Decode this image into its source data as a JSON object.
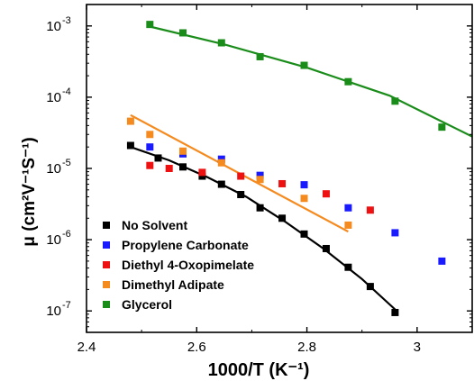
{
  "chart_data": {
    "type": "scatter",
    "xlabel": "1000/T (K⁻¹)",
    "ylabel": "μ (cm²V⁻¹S⁻¹)",
    "xlim": [
      2.4,
      3.1
    ],
    "ylim": [
      5e-08,
      0.002
    ],
    "yscale": "log",
    "grid": false,
    "legend_position": "lower-left",
    "x_ticks": [
      {
        "value": 2.4,
        "label": "2.4"
      },
      {
        "value": 2.6,
        "label": "2.6"
      },
      {
        "value": 2.8,
        "label": "2.8"
      },
      {
        "value": 3.0,
        "label": "3"
      }
    ],
    "y_ticks": [
      {
        "value": 1e-07,
        "mantissa": "10",
        "exponent": "-7"
      },
      {
        "value": 1e-06,
        "mantissa": "10",
        "exponent": "-6"
      },
      {
        "value": 1e-05,
        "mantissa": "10",
        "exponent": "-5"
      },
      {
        "value": 0.0001,
        "mantissa": "10",
        "exponent": "-4"
      },
      {
        "value": 0.001,
        "mantissa": "10",
        "exponent": "-3"
      }
    ],
    "series": [
      {
        "name": "No Solvent",
        "color": "#000000",
        "points": [
          [
            2.48,
            2.1e-05
          ],
          [
            2.53,
            1.4e-05
          ],
          [
            2.575,
            1.05e-05
          ],
          [
            2.61,
            7.8e-06
          ],
          [
            2.645,
            6e-06
          ],
          [
            2.68,
            4.3e-06
          ],
          [
            2.715,
            2.8e-06
          ],
          [
            2.755,
            2e-06
          ],
          [
            2.795,
            1.2e-06
          ],
          [
            2.835,
            7.5e-07
          ],
          [
            2.875,
            4.1e-07
          ],
          [
            2.915,
            2.2e-07
          ],
          [
            2.96,
            9.5e-08
          ]
        ],
        "fit": [
          [
            2.48,
            2e-05
          ],
          [
            2.55,
            1.3e-05
          ],
          [
            2.62,
            7.5e-06
          ],
          [
            2.69,
            4e-06
          ],
          [
            2.76,
            1.8e-06
          ],
          [
            2.83,
            7.5e-07
          ],
          [
            2.9,
            2.8e-07
          ],
          [
            2.96,
            1.05e-07
          ]
        ]
      },
      {
        "name": "Propylene Carbonate",
        "color": "#1a1aff",
        "points": [
          [
            2.515,
            2e-05
          ],
          [
            2.575,
            1.6e-05
          ],
          [
            2.645,
            1.35e-05
          ],
          [
            2.715,
            8e-06
          ],
          [
            2.795,
            5.9e-06
          ],
          [
            2.875,
            2.8e-06
          ],
          [
            2.96,
            1.25e-06
          ],
          [
            3.045,
            5e-07
          ]
        ]
      },
      {
        "name": "Diethyl 4-Oxopimelate",
        "color": "#ee1111",
        "points": [
          [
            2.515,
            1.1e-05
          ],
          [
            2.55,
            1e-05
          ],
          [
            2.61,
            8.8e-06
          ],
          [
            2.68,
            7.8e-06
          ],
          [
            2.755,
            6.1e-06
          ],
          [
            2.835,
            4.4e-06
          ],
          [
            2.915,
            2.6e-06
          ]
        ]
      },
      {
        "name": "Dimethyl Adipate",
        "color": "#f58a1f",
        "points": [
          [
            2.48,
            4.6e-05
          ],
          [
            2.515,
            3e-05
          ],
          [
            2.575,
            1.75e-05
          ],
          [
            2.645,
            1.2e-05
          ],
          [
            2.715,
            7e-06
          ],
          [
            2.795,
            3.8e-06
          ],
          [
            2.875,
            1.6e-06
          ]
        ],
        "fit": [
          [
            2.48,
            5.6e-05
          ],
          [
            2.875,
            1.3e-06
          ]
        ]
      },
      {
        "name": "Glycerol",
        "color": "#1a8c1a",
        "points": [
          [
            2.515,
            0.00105
          ],
          [
            2.575,
            0.0008
          ],
          [
            2.645,
            0.00058
          ],
          [
            2.715,
            0.00037
          ],
          [
            2.795,
            0.00028
          ],
          [
            2.875,
            0.000165
          ],
          [
            2.96,
            8.8e-05
          ],
          [
            3.045,
            3.8e-05
          ]
        ],
        "fit": [
          [
            2.515,
            0.00098
          ],
          [
            2.65,
            0.00055
          ],
          [
            2.8,
            0.00026
          ],
          [
            2.95,
            0.000105
          ],
          [
            3.1,
            2.8e-05
          ]
        ]
      }
    ]
  }
}
